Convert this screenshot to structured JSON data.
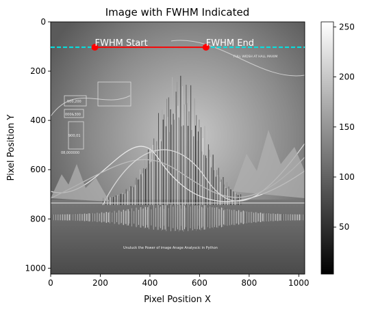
{
  "chart_data": {
    "type": "heatmap",
    "title": "Image with FWHM Indicated",
    "xlabel": "Pixel Position X",
    "ylabel": "Pixel Position Y",
    "xlim": [
      0,
      1024
    ],
    "ylim": [
      1024,
      0
    ],
    "xticks": [
      0,
      200,
      400,
      600,
      800,
      1000
    ],
    "yticks": [
      0,
      200,
      400,
      600,
      800,
      1000
    ],
    "colormap": "gray",
    "colorbar": {
      "range": [
        3,
        255
      ],
      "ticks": [
        50,
        100,
        150,
        200,
        250
      ]
    },
    "half_max_line": {
      "y": 103,
      "color": "#00e5e5",
      "style": "dashed"
    },
    "fwhm_segment": {
      "x_start": 178,
      "x_end": 626,
      "y": 103,
      "color": "#ff0000"
    },
    "annotations": [
      {
        "text": "FWHM Start",
        "x": 178,
        "y": 103
      },
      {
        "text": "FWHM End",
        "x": 626,
        "y": 103
      }
    ]
  },
  "image_text": [
    "FULL WIDSH AT HALL MAXIM",
    "Unuluck the Power of image Anage Analyscic in Python",
    "500,200",
    "000&300",
    "900,01",
    "08,000000"
  ],
  "colors": {
    "half_max_line": "#00e5e5",
    "fwhm_segment": "#ff0000"
  }
}
